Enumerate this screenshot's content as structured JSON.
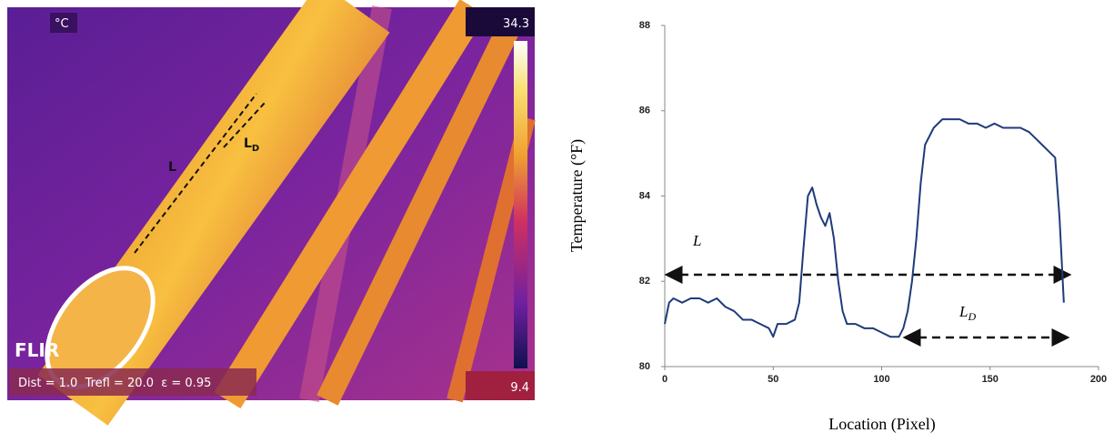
{
  "thermal_image": {
    "unit": "°C",
    "scale_max": "34.3",
    "scale_min": "9.4",
    "brand": "FLIR",
    "settings": "Dist = 1.0  Trefl = 20.0  ε = 0.95",
    "label_l": "L",
    "label_ld": {
      "text": "L",
      "subscript": "D"
    }
  },
  "chart_data": {
    "type": "line",
    "x_label": "Location (Pixel)",
    "y_label": "Temperature (°F)",
    "xlim": [
      0,
      200
    ],
    "xticks": [
      0,
      50,
      100,
      150,
      200
    ],
    "ylim": [
      80,
      88
    ],
    "yticks": [
      80,
      82,
      84,
      86,
      88
    ],
    "annotations": [
      {
        "text": "L"
      },
      {
        "text": "L",
        "subscript": "D"
      }
    ],
    "series": [
      {
        "color": "#1f3b7a",
        "x": [
          0,
          2,
          4,
          8,
          12,
          16,
          20,
          24,
          28,
          32,
          36,
          40,
          44,
          48,
          50,
          52,
          56,
          60,
          62,
          64,
          66,
          68,
          70,
          72,
          74,
          76,
          78,
          80,
          82,
          84,
          88,
          92,
          96,
          100,
          104,
          108,
          110,
          112,
          114,
          116,
          118,
          120,
          124,
          128,
          132,
          136,
          140,
          144,
          148,
          152,
          156,
          160,
          164,
          168,
          172,
          176,
          180,
          182,
          184
        ],
        "values": [
          81.0,
          81.5,
          81.6,
          81.5,
          81.6,
          81.6,
          81.5,
          81.6,
          81.4,
          81.3,
          81.1,
          81.1,
          81.0,
          80.9,
          80.7,
          81.0,
          81.0,
          81.1,
          81.5,
          82.8,
          84.0,
          84.2,
          83.8,
          83.5,
          83.3,
          83.6,
          83.0,
          82.0,
          81.3,
          81.0,
          81.0,
          80.9,
          80.9,
          80.8,
          80.7,
          80.7,
          80.9,
          81.3,
          82.0,
          83.0,
          84.3,
          85.2,
          85.6,
          85.8,
          85.8,
          85.8,
          85.7,
          85.7,
          85.6,
          85.7,
          85.6,
          85.6,
          85.6,
          85.5,
          85.3,
          85.1,
          84.9,
          83.5,
          81.5
        ]
      }
    ]
  }
}
